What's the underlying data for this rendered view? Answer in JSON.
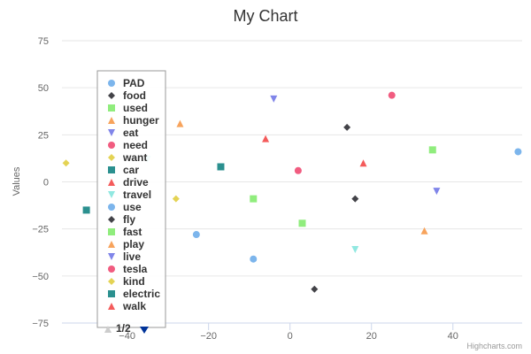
{
  "chart_data": {
    "type": "scatter",
    "title": "My Chart",
    "xlabel": "",
    "ylabel": "Values",
    "xlim": [
      -56,
      57
    ],
    "ylim": [
      -75,
      75
    ],
    "x_ticks": [
      -40,
      -20,
      0,
      20,
      40
    ],
    "y_ticks": [
      75,
      50,
      25,
      0,
      -25,
      -50,
      -75
    ],
    "x_tick_labels": [
      "−40",
      "−20",
      "0",
      "20",
      "40"
    ],
    "y_tick_labels": [
      "75",
      "50",
      "25",
      "0",
      "−25",
      "−50",
      "−75"
    ],
    "grid": "horizontal",
    "legend_position": "left",
    "legend_page": "1/2",
    "credits": "Highcharts.com",
    "series": [
      {
        "name": "PAD",
        "color": "#7cb5ec",
        "marker": "circle",
        "points": [
          [
            -23,
            -28
          ],
          [
            -9,
            -41
          ],
          [
            56,
            16
          ]
        ]
      },
      {
        "name": "food",
        "color": "#434348",
        "marker": "diamond",
        "points": [
          [
            14,
            29
          ],
          [
            16,
            -9
          ],
          [
            6,
            -57
          ]
        ]
      },
      {
        "name": "used",
        "color": "#90ed7d",
        "marker": "square",
        "points": [
          [
            -9,
            -9
          ],
          [
            3,
            -22
          ],
          [
            35,
            17
          ]
        ]
      },
      {
        "name": "hunger",
        "color": "#f7a35c",
        "marker": "triangle",
        "points": [
          [
            -27,
            31
          ],
          [
            33,
            -26
          ]
        ]
      },
      {
        "name": "eat",
        "color": "#8085e9",
        "marker": "triangle-down",
        "points": [
          [
            -4,
            44
          ],
          [
            36,
            -5
          ]
        ]
      },
      {
        "name": "need",
        "color": "#f15c80",
        "marker": "circle",
        "points": [
          [
            25,
            46
          ],
          [
            2,
            6
          ]
        ]
      },
      {
        "name": "want",
        "color": "#e4d354",
        "marker": "diamond",
        "points": [
          [
            -55,
            10
          ],
          [
            -28,
            -9
          ]
        ]
      },
      {
        "name": "car",
        "color": "#2b908f",
        "marker": "square",
        "points": [
          [
            -17,
            8
          ],
          [
            -50,
            -15
          ]
        ]
      },
      {
        "name": "drive",
        "color": "#f45b5b",
        "marker": "triangle",
        "points": [
          [
            -6,
            23
          ],
          [
            18,
            10
          ]
        ]
      },
      {
        "name": "travel",
        "color": "#91e8e1",
        "marker": "triangle-down",
        "points": [
          [
            -35,
            12
          ],
          [
            16,
            -36
          ]
        ]
      },
      {
        "name": "use",
        "color": "#7cb5ec",
        "marker": "circle",
        "points": []
      },
      {
        "name": "fly",
        "color": "#434348",
        "marker": "diamond",
        "points": []
      },
      {
        "name": "fast",
        "color": "#90ed7d",
        "marker": "square",
        "points": []
      },
      {
        "name": "play",
        "color": "#f7a35c",
        "marker": "triangle",
        "points": []
      },
      {
        "name": "live",
        "color": "#8085e9",
        "marker": "triangle-down",
        "points": []
      },
      {
        "name": "tesla",
        "color": "#f15c80",
        "marker": "circle",
        "points": []
      },
      {
        "name": "kind",
        "color": "#e4d354",
        "marker": "diamond",
        "points": []
      },
      {
        "name": "electric",
        "color": "#2b908f",
        "marker": "square",
        "points": []
      },
      {
        "name": "walk",
        "color": "#f45b5b",
        "marker": "triangle",
        "points": []
      }
    ]
  }
}
